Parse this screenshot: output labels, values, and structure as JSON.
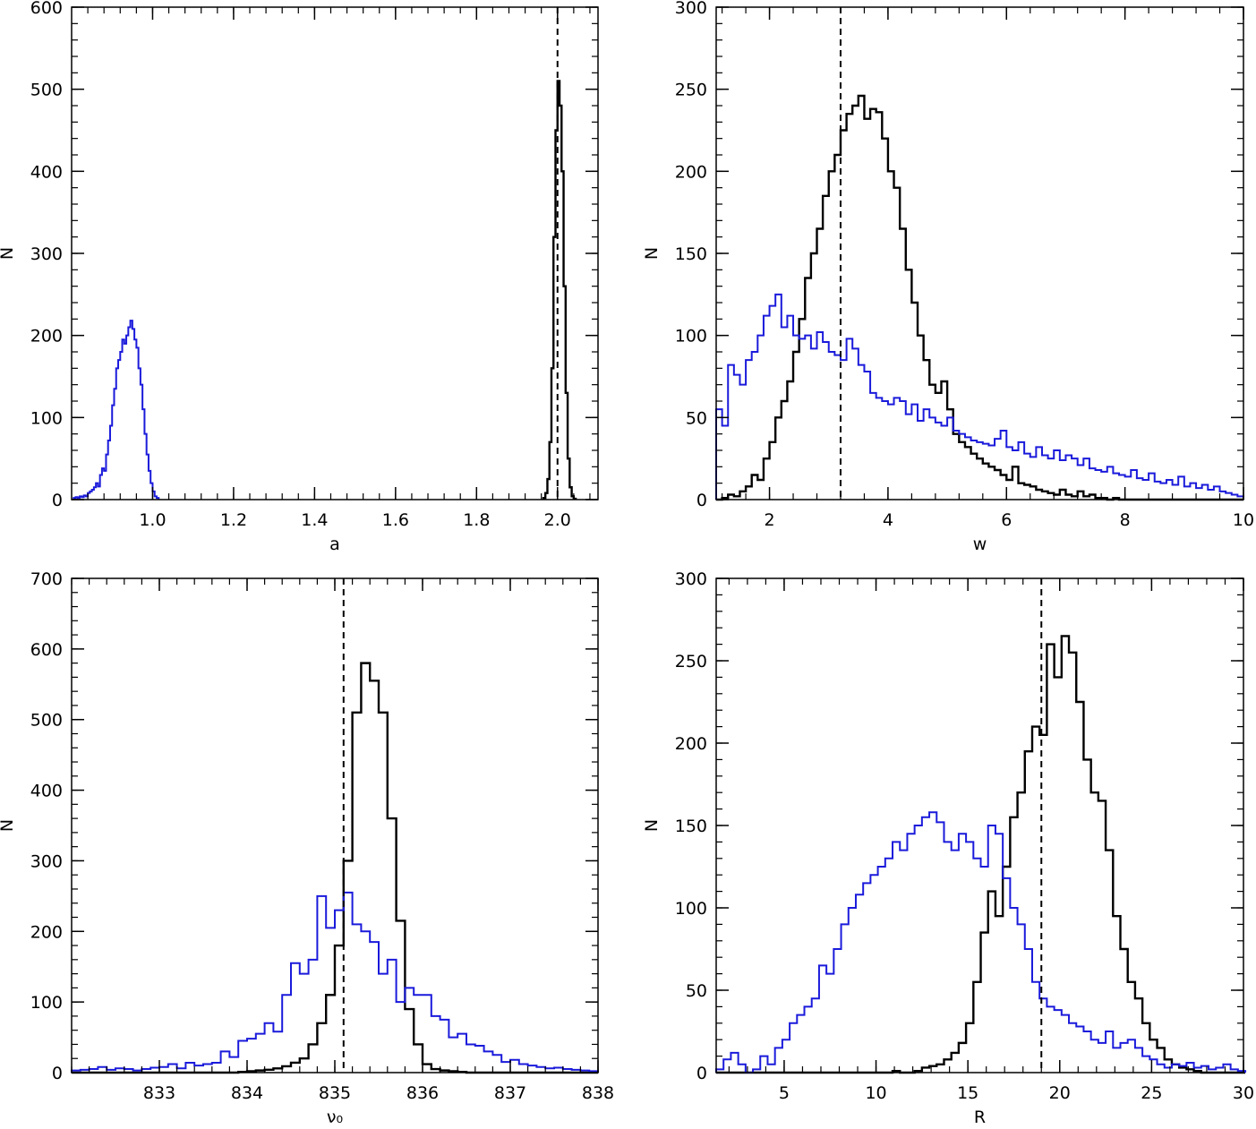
{
  "chart_data": [
    {
      "type": "histogram",
      "panel": "top-left",
      "xlabel": "a",
      "ylabel": "N",
      "xlim": [
        0.8,
        2.1
      ],
      "ylim": [
        0,
        600
      ],
      "xticks": [
        1.0,
        1.2,
        1.4,
        1.6,
        1.8,
        2.0
      ],
      "xtick_labels": [
        "1.0",
        "1.2",
        "1.4",
        "1.6",
        "1.8",
        "2.0"
      ],
      "yticks": [
        0,
        100,
        200,
        300,
        400,
        500,
        600
      ],
      "ytick_labels": [
        "0",
        "100",
        "200",
        "300",
        "400",
        "500",
        "600"
      ],
      "reference_line_x": 2.0,
      "series": [
        {
          "name": "blue",
          "color": "#1a1adb",
          "bin_width": 0.005,
          "bin_start": 0.805,
          "values": [
            2,
            3,
            2,
            4,
            3,
            5,
            4,
            8,
            10,
            12,
            15,
            20,
            16,
            30,
            38,
            35,
            55,
            72,
            90,
            115,
            135,
            160,
            170,
            180,
            195,
            190,
            200,
            210,
            218,
            208,
            195,
            185,
            160,
            140,
            110,
            80,
            55,
            35,
            20,
            10,
            4,
            2
          ]
        },
        {
          "name": "black",
          "color": "#000000",
          "bin_width": 0.005,
          "bin_start": 1.965,
          "values": [
            2,
            8,
            25,
            70,
            160,
            320,
            450,
            510,
            480,
            400,
            260,
            130,
            50,
            15,
            4,
            1
          ]
        }
      ]
    },
    {
      "type": "histogram",
      "panel": "top-right",
      "xlabel": "w",
      "ylabel": "N",
      "xlim": [
        1.1,
        10
      ],
      "ylim": [
        0,
        300
      ],
      "xticks": [
        2,
        4,
        6,
        8,
        10
      ],
      "xtick_labels": [
        "2",
        "4",
        "6",
        "8",
        "10"
      ],
      "yticks": [
        0,
        50,
        100,
        150,
        200,
        250,
        300
      ],
      "ytick_labels": [
        "0",
        "50",
        "100",
        "150",
        "200",
        "250",
        "300"
      ],
      "reference_line_x": 3.2,
      "series": [
        {
          "name": "black",
          "color": "#000000",
          "bin_width": 0.1,
          "bin_start": 1.1,
          "values": [
            0,
            1,
            3,
            2,
            5,
            8,
            15,
            12,
            25,
            35,
            50,
            60,
            72,
            90,
            110,
            135,
            150,
            165,
            185,
            200,
            210,
            225,
            235,
            240,
            246,
            232,
            238,
            236,
            220,
            200,
            190,
            165,
            140,
            120,
            100,
            85,
            70,
            65,
            72,
            55,
            40,
            35,
            32,
            28,
            25,
            22,
            20,
            18,
            15,
            12,
            20,
            10,
            9,
            8,
            6,
            5,
            4,
            3,
            6,
            3,
            2,
            5,
            2,
            3,
            1,
            1,
            0,
            1,
            0,
            0,
            0,
            0,
            0,
            0,
            0,
            0,
            0,
            0,
            0,
            0,
            0,
            0,
            0,
            0,
            0,
            0,
            0,
            0,
            0
          ]
        },
        {
          "name": "blue",
          "color": "#1a1adb",
          "bin_width": 0.1,
          "bin_start": 1.1,
          "values": [
            55,
            45,
            82,
            76,
            70,
            85,
            90,
            100,
            112,
            118,
            125,
            105,
            112,
            100,
            98,
            100,
            92,
            102,
            96,
            90,
            88,
            85,
            98,
            92,
            82,
            78,
            65,
            62,
            60,
            58,
            62,
            60,
            52,
            58,
            48,
            55,
            50,
            47,
            45,
            50,
            42,
            40,
            38,
            36,
            35,
            34,
            33,
            37,
            42,
            32,
            30,
            35,
            28,
            26,
            32,
            27,
            25,
            30,
            24,
            27,
            25,
            21,
            25,
            19,
            18,
            17,
            20,
            16,
            15,
            14,
            18,
            13,
            12,
            16,
            11,
            10,
            12,
            9,
            14,
            8,
            10,
            7,
            9,
            6,
            8,
            5,
            4,
            3,
            2
          ]
        }
      ]
    },
    {
      "type": "histogram",
      "panel": "bottom-left",
      "xlabel": "ν₀",
      "ylabel": "N",
      "xlim": [
        832.0,
        838.0
      ],
      "ylim": [
        0,
        700
      ],
      "xticks": [
        833,
        834,
        835,
        836,
        837,
        838
      ],
      "xtick_labels": [
        "833",
        "834",
        "835",
        "836",
        "837",
        "838"
      ],
      "yticks": [
        0,
        100,
        200,
        300,
        400,
        500,
        600,
        700
      ],
      "ytick_labels": [
        "0",
        "100",
        "200",
        "300",
        "400",
        "500",
        "600",
        "700"
      ],
      "reference_line_x": 835.1,
      "series": [
        {
          "name": "black",
          "color": "#000000",
          "bin_width": 0.1,
          "bin_start": 832.0,
          "values": [
            0,
            0,
            0,
            0,
            0,
            0,
            0,
            0,
            0,
            0,
            0,
            0,
            0,
            0,
            0,
            0,
            0,
            0,
            0,
            1,
            2,
            3,
            4,
            6,
            9,
            14,
            20,
            40,
            70,
            110,
            180,
            300,
            510,
            580,
            555,
            510,
            360,
            215,
            90,
            40,
            12,
            5,
            3,
            2,
            1,
            0,
            0,
            0,
            0,
            0,
            0,
            0,
            0,
            0,
            0,
            0,
            0,
            0,
            0,
            0
          ]
        },
        {
          "name": "blue",
          "color": "#1a1adb",
          "bin_width": 0.1,
          "bin_start": 832.0,
          "values": [
            3,
            4,
            5,
            8,
            4,
            6,
            5,
            3,
            5,
            7,
            8,
            12,
            6,
            14,
            10,
            12,
            14,
            30,
            22,
            45,
            48,
            55,
            70,
            58,
            110,
            155,
            140,
            160,
            250,
            205,
            230,
            255,
            210,
            200,
            185,
            140,
            160,
            100,
            120,
            110,
            110,
            80,
            75,
            50,
            55,
            40,
            38,
            30,
            25,
            15,
            18,
            12,
            10,
            8,
            6,
            7,
            5,
            4,
            3,
            2
          ]
        }
      ]
    },
    {
      "type": "histogram",
      "panel": "bottom-right",
      "xlabel": "R",
      "ylabel": "N",
      "xlim": [
        1.3,
        30
      ],
      "ylim": [
        0,
        300
      ],
      "xticks": [
        5,
        10,
        15,
        20,
        25,
        30
      ],
      "xtick_labels": [
        "5",
        "10",
        "15",
        "20",
        "25",
        "30"
      ],
      "yticks": [
        0,
        50,
        100,
        150,
        200,
        250,
        300
      ],
      "ytick_labels": [
        "0",
        "50",
        "100",
        "150",
        "200",
        "250",
        "300"
      ],
      "reference_line_x": 19.0,
      "series": [
        {
          "name": "black",
          "color": "#000000",
          "bin_width": 0.4,
          "bin_start": 1.3,
          "values": [
            0,
            0,
            0,
            0,
            0,
            0,
            0,
            0,
            0,
            0,
            0,
            0,
            0,
            0,
            0,
            0,
            0,
            0,
            0,
            0,
            0,
            0,
            0,
            0,
            1,
            0,
            0,
            1,
            3,
            4,
            5,
            8,
            12,
            18,
            30,
            55,
            85,
            110,
            95,
            125,
            155,
            170,
            195,
            210,
            205,
            260,
            240,
            265,
            255,
            225,
            190,
            170,
            165,
            135,
            95,
            75,
            55,
            45,
            30,
            20,
            15,
            8,
            5,
            3,
            2,
            1,
            0,
            0,
            0,
            0,
            0,
            0
          ]
        },
        {
          "name": "blue",
          "color": "#1a1adb",
          "bin_width": 0.4,
          "bin_start": 1.3,
          "values": [
            2,
            8,
            12,
            5,
            0,
            2,
            10,
            5,
            15,
            20,
            30,
            35,
            40,
            45,
            65,
            60,
            75,
            90,
            100,
            108,
            115,
            120,
            125,
            130,
            140,
            135,
            145,
            150,
            155,
            158,
            152,
            140,
            135,
            145,
            140,
            130,
            125,
            150,
            145,
            118,
            100,
            90,
            75,
            55,
            45,
            40,
            38,
            35,
            30,
            28,
            25,
            20,
            18,
            25,
            15,
            18,
            20,
            15,
            10,
            8,
            5,
            3,
            5,
            4,
            6,
            3,
            4,
            2,
            3,
            5,
            2,
            1
          ]
        }
      ]
    }
  ]
}
